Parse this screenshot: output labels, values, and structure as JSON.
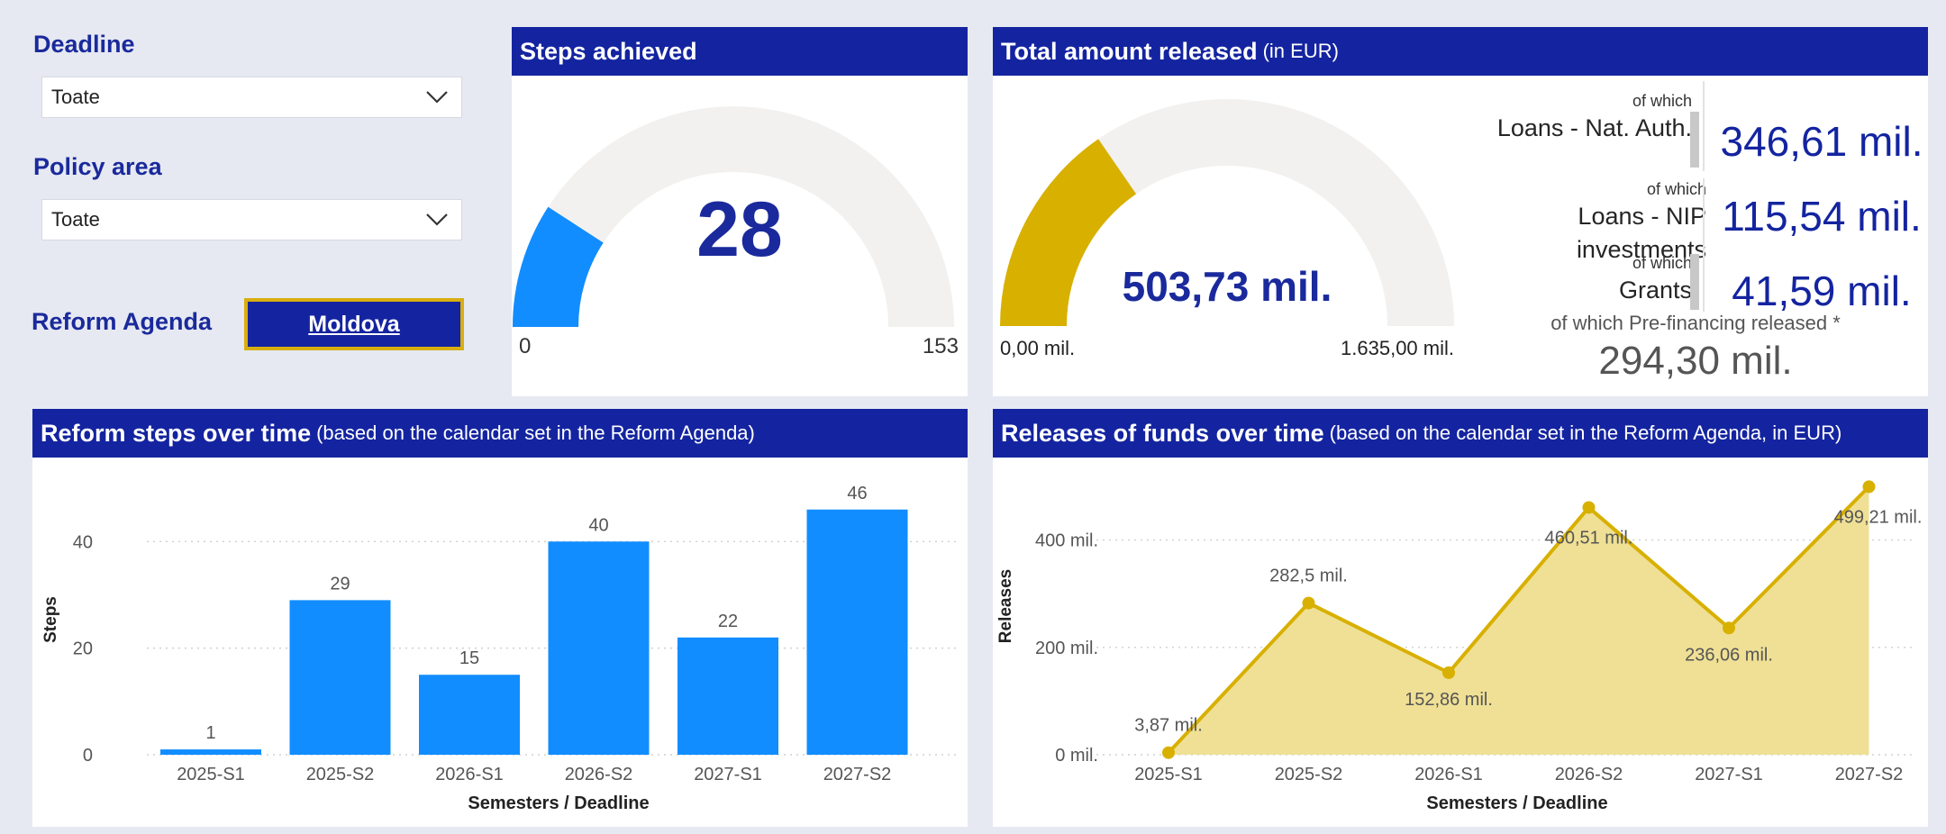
{
  "filters": {
    "deadline_label": "Deadline",
    "deadline_value": "Toate",
    "policy_label": "Policy area",
    "policy_value": "Toate",
    "agenda_label": "Reform Agenda",
    "agenda_button": "Moldova"
  },
  "steps_card": {
    "title": "Steps achieved",
    "value": "28",
    "value_num": 28,
    "min_label": "0",
    "max_label": "153",
    "min": 0,
    "max": 153,
    "fill_color": "#118dff",
    "track_color": "#f2f1f0"
  },
  "amount_card": {
    "title": "Total amount released",
    "title_sub": "(in EUR)",
    "value": "503,73 mil.",
    "value_num": 503.73,
    "min_label": "0,00 mil.",
    "max_label": "1.635,00 mil.",
    "min": 0,
    "max": 1635,
    "fill_color": "#d8b000",
    "breakdown": [
      {
        "prefix": "of which",
        "name": "Loans - Nat. Auth.",
        "value": "346,61 mil."
      },
      {
        "prefix": "of which",
        "name": "Loans - NIP investments",
        "value": "115,54 mil."
      },
      {
        "prefix": "of which",
        "name": "Grants",
        "value": "41,59 mil."
      }
    ],
    "prefinancing_label": "of which Pre-financing released *",
    "prefinancing_value": "294,30 mil."
  },
  "steps_chart": {
    "title": "Reform steps over time",
    "title_sub": "(based on the calendar set in the Reform Agenda)",
    "chart_data": {
      "type": "bar",
      "categories": [
        "2025-S1",
        "2025-S2",
        "2026-S1",
        "2026-S2",
        "2027-S1",
        "2027-S2"
      ],
      "values": [
        1,
        29,
        15,
        40,
        22,
        46
      ],
      "data_labels": [
        "1",
        "29",
        "15",
        "40",
        "22",
        "46"
      ],
      "xlabel": "Semesters / Deadline",
      "ylabel": "Steps",
      "yticks": [
        "0",
        "20",
        "40"
      ],
      "ytick_values": [
        0,
        20,
        40
      ],
      "ylim": [
        0,
        49
      ],
      "grid": true,
      "color": "#118dff"
    }
  },
  "funds_chart": {
    "title": "Releases of funds over time",
    "title_sub": "(based on the calendar set in the Reform Agenda, in EUR)",
    "chart_data": {
      "type": "area",
      "categories": [
        "2025-S1",
        "2025-S2",
        "2026-S1",
        "2026-S2",
        "2027-S1",
        "2027-S2"
      ],
      "values": [
        3.87,
        282.5,
        152.86,
        460.51,
        236.06,
        499.21
      ],
      "data_labels": [
        "3,87 mil.",
        "282,5 mil.",
        "152,86 mil.",
        "460,51 mil.",
        "236,06 mil.",
        "499,21 mil."
      ],
      "xlabel": "Semesters / Deadline",
      "ylabel": "Releases",
      "yticks": [
        "0 mil.",
        "200 mil.",
        "400 mil."
      ],
      "ytick_values": [
        0,
        200,
        400
      ],
      "ylim": [
        0,
        520
      ],
      "grid": true,
      "line_color": "#d8b000",
      "fill_color": "#efe095"
    }
  }
}
